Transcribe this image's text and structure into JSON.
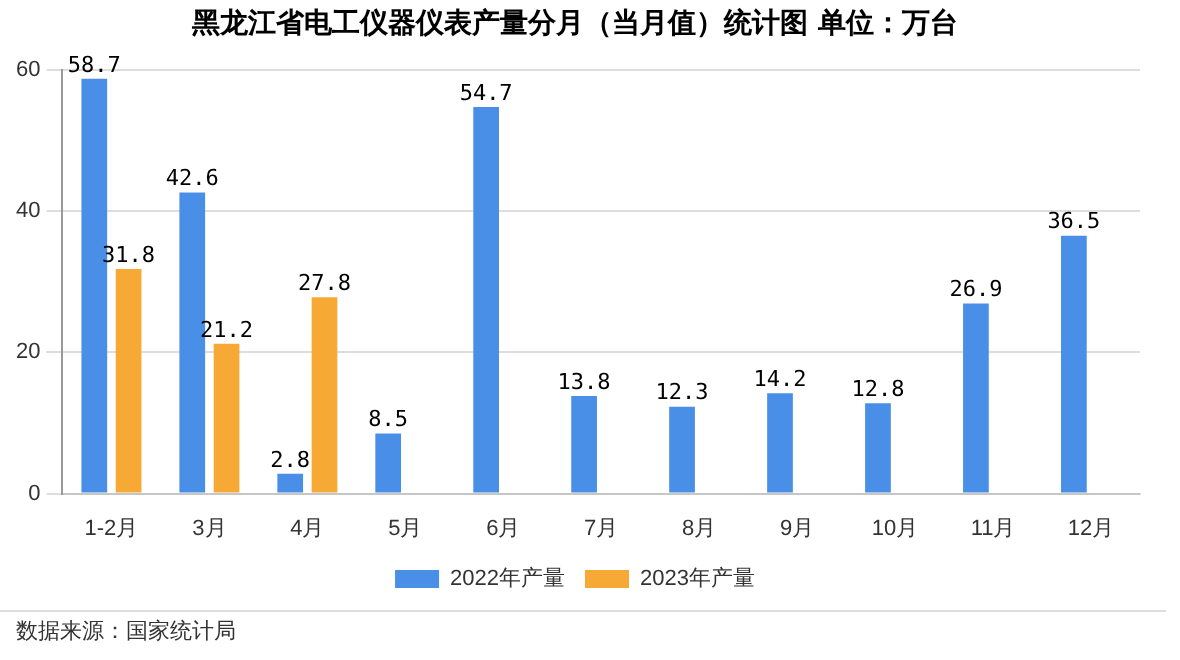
{
  "chart_data": {
    "type": "bar",
    "title": "黑龙江省电工仪器仪表产量分月（当月值）统计图 单位：万台",
    "categories": [
      "1-2月",
      "3月",
      "4月",
      "5月",
      "6月",
      "7月",
      "8月",
      "9月",
      "10月",
      "11月",
      "12月"
    ],
    "series": [
      {
        "name": "2022年产量",
        "color": "#4a8fe7",
        "values": [
          58.7,
          42.6,
          2.8,
          8.5,
          54.7,
          13.8,
          12.3,
          14.2,
          12.8,
          26.9,
          36.5
        ]
      },
      {
        "name": "2023年产量",
        "color": "#f7a935",
        "values": [
          31.8,
          21.2,
          27.8,
          null,
          null,
          null,
          null,
          null,
          null,
          null,
          null
        ]
      }
    ],
    "ylim": [
      0,
      60
    ],
    "yticks": [
      0,
      20,
      40,
      60
    ],
    "grid": "y",
    "legend": "bottom",
    "data_labels": true,
    "annotations": [
      "数据来源：国家统计局"
    ]
  }
}
